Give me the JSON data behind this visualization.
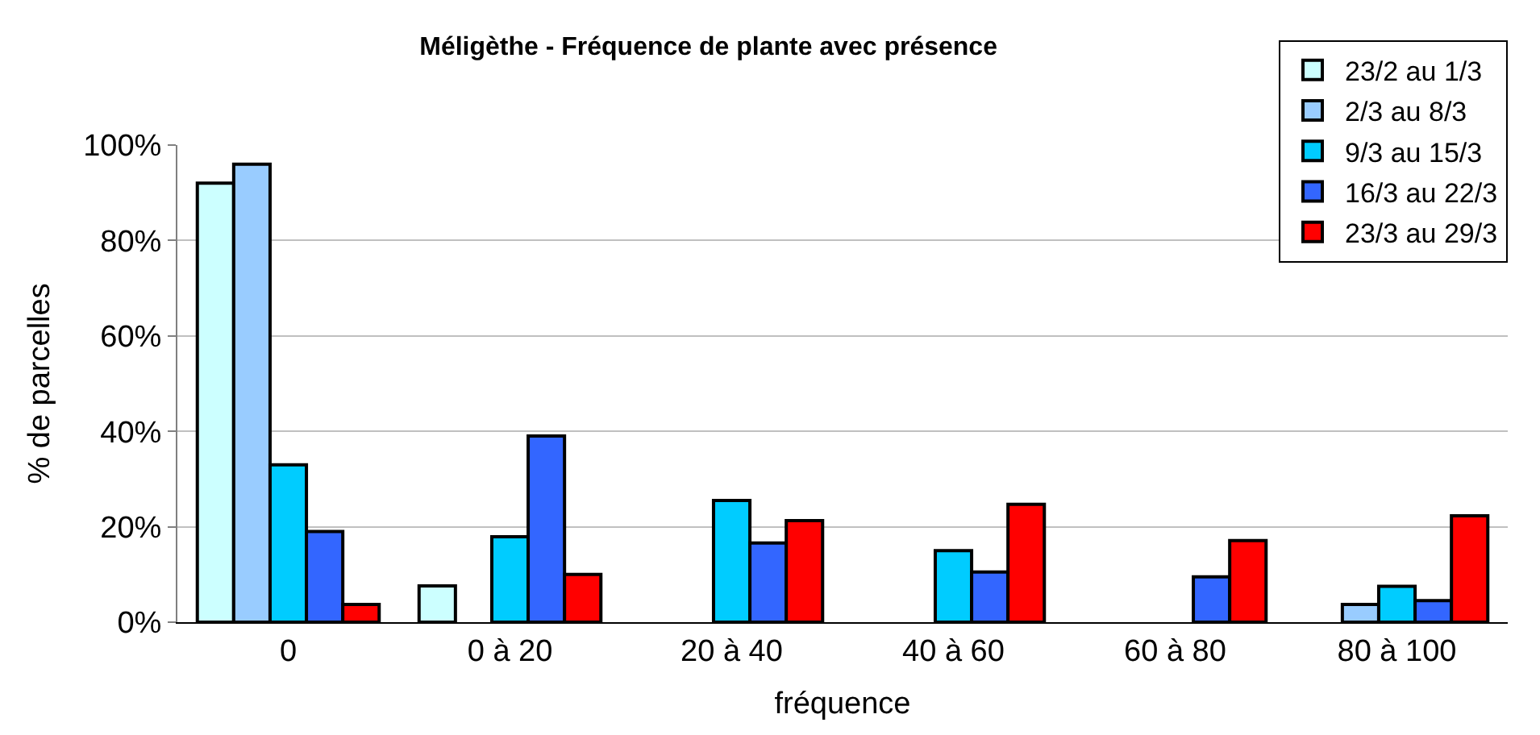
{
  "chart_data": {
    "type": "bar",
    "title": "Méligèthe - Fréquence de plante avec présence",
    "xlabel": "fréquence",
    "ylabel": "% de parcelles",
    "categories": [
      "0",
      "0 à 20",
      "20 à 40",
      "40 à 60",
      "60 à 80",
      "80 à 100"
    ],
    "series": [
      {
        "name": "23/2 au 1/3",
        "color": "#ccffff",
        "values": [
          92,
          7.6,
          null,
          null,
          null,
          null
        ]
      },
      {
        "name": "2/3 au 8/3",
        "color": "#99ccff",
        "values": [
          96,
          null,
          null,
          null,
          null,
          3.7
        ]
      },
      {
        "name": "9/3 au 15/3",
        "color": "#00ccff",
        "values": [
          33,
          17.9,
          25.5,
          15,
          null,
          7.5
        ]
      },
      {
        "name": "16/3 au 22/3",
        "color": "#3366ff",
        "values": [
          19,
          39,
          16.6,
          10.5,
          9.5,
          4.5
        ]
      },
      {
        "name": "23/3 au 29/3",
        "color": "#ff0000",
        "values": [
          3.7,
          10,
          21.3,
          24.7,
          17.1,
          22.3
        ]
      }
    ],
    "ylim": [
      0,
      100
    ],
    "yticks": [
      {
        "value": 0,
        "label": "0%"
      },
      {
        "value": 20,
        "label": "20%"
      },
      {
        "value": 40,
        "label": "40%"
      },
      {
        "value": 60,
        "label": "60%"
      },
      {
        "value": 80,
        "label": "80%"
      },
      {
        "value": 100,
        "label": "100%"
      }
    ],
    "grid": "y",
    "legend": "top right"
  }
}
